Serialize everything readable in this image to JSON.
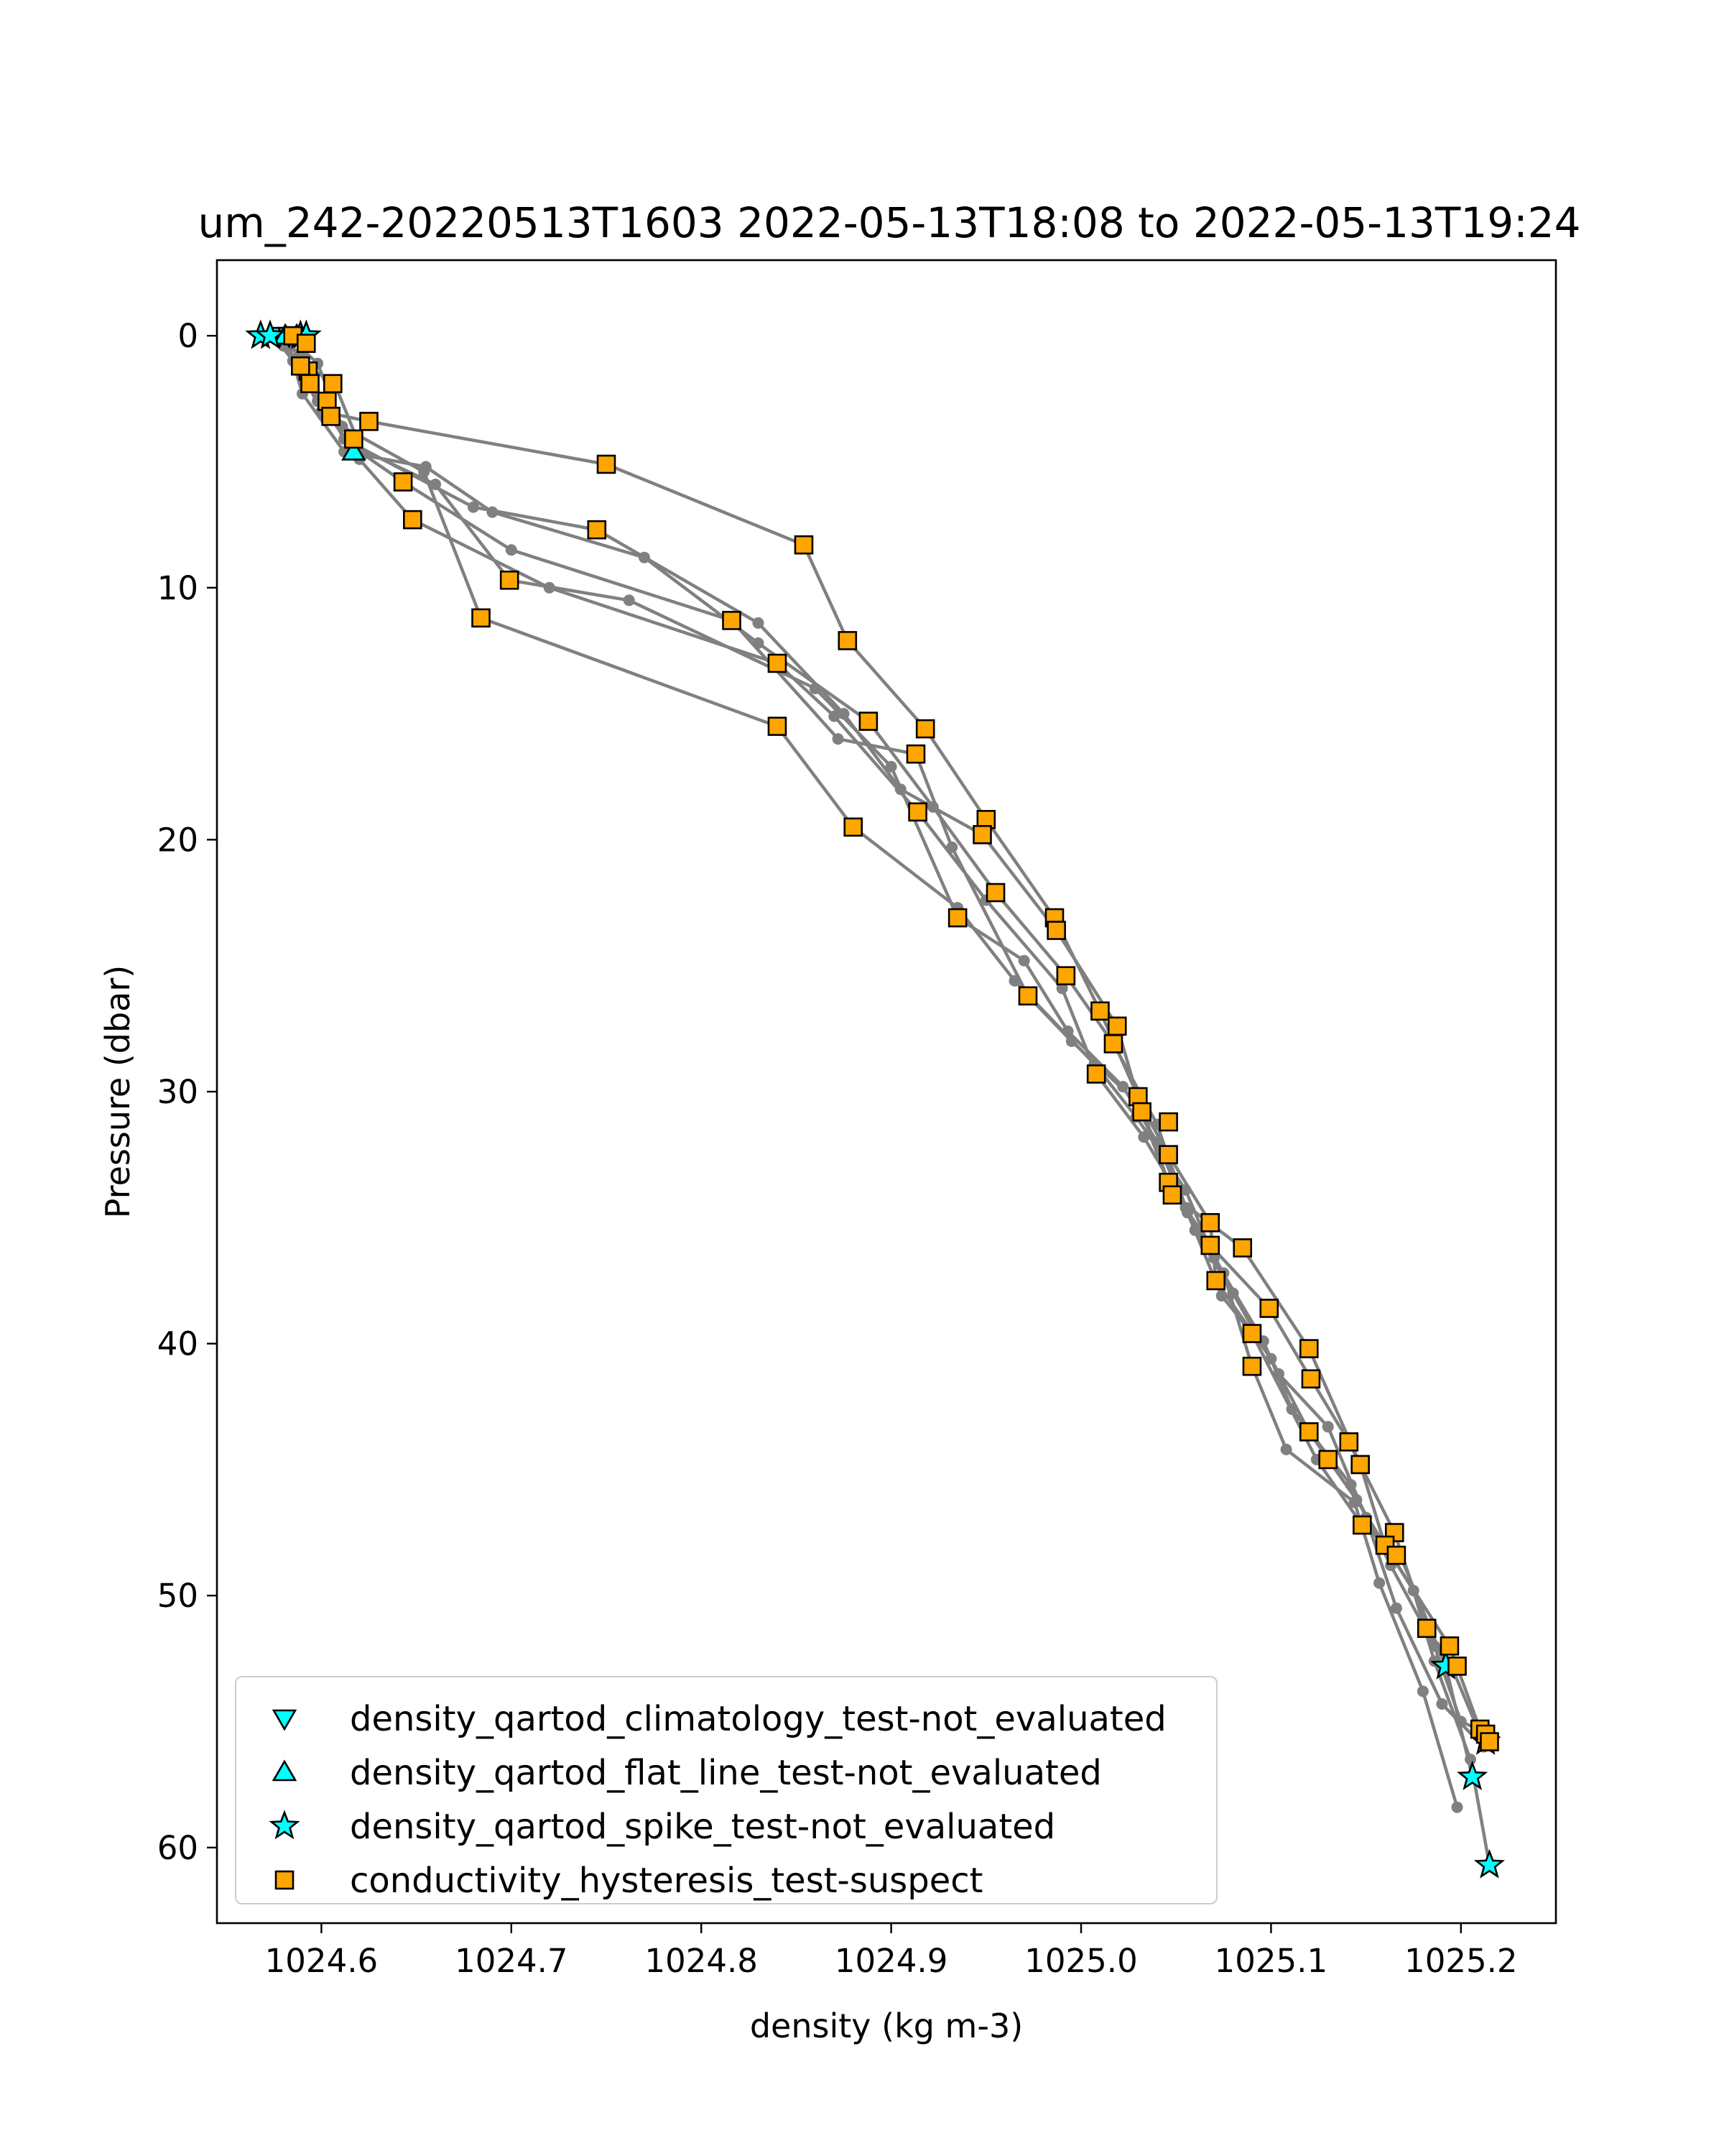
{
  "chart_data": {
    "type": "scatter",
    "title": "um_242-20220513T1603 2022-05-13T18:08 to 2022-05-13T19:24",
    "xlabel": "density (kg m-3)",
    "ylabel": "Pressure (dbar)",
    "xlim": [
      1024.545,
      1025.25
    ],
    "ylim": [
      63,
      -3
    ],
    "y_inverted": true,
    "grid": false,
    "legend_position": "lower-left",
    "x_ticks": [
      {
        "value": 1024.6,
        "label": "1024.6"
      },
      {
        "value": 1024.7,
        "label": "1024.7"
      },
      {
        "value": 1024.8,
        "label": "1024.8"
      },
      {
        "value": 1024.9,
        "label": "1024.9"
      },
      {
        "value": 1025.0,
        "label": "1025.0"
      },
      {
        "value": 1025.1,
        "label": "1025.1"
      },
      {
        "value": 1025.2,
        "label": "1025.2"
      }
    ],
    "y_ticks": [
      {
        "value": 0,
        "label": "0"
      },
      {
        "value": 10,
        "label": "10"
      },
      {
        "value": 20,
        "label": "20"
      },
      {
        "value": 30,
        "label": "30"
      },
      {
        "value": 40,
        "label": "40"
      },
      {
        "value": 50,
        "label": "50"
      },
      {
        "value": 60,
        "label": "60"
      }
    ],
    "profile_line_color": "#808080",
    "profiles": [
      [
        [
          1024.568,
          0.0
        ],
        [
          1024.58,
          0.4
        ],
        [
          1024.592,
          1.8
        ],
        [
          1024.6,
          3.0
        ],
        [
          1024.625,
          3.4
        ],
        [
          1024.75,
          5.1
        ],
        [
          1024.854,
          8.3
        ],
        [
          1024.877,
          12.1
        ],
        [
          1024.918,
          15.6
        ],
        [
          1024.95,
          19.2
        ],
        [
          1024.986,
          23.1
        ],
        [
          1025.01,
          26.8
        ],
        [
          1025.03,
          30.2
        ],
        [
          1025.046,
          33.6
        ],
        [
          1025.068,
          36.1
        ],
        [
          1025.099,
          38.6
        ],
        [
          1025.121,
          41.4
        ],
        [
          1025.141,
          43.9
        ],
        [
          1025.165,
          47.5
        ],
        [
          1025.182,
          51.3
        ],
        [
          1025.195,
          52.8
        ],
        [
          1025.21,
          55.5
        ],
        [
          1025.215,
          55.8
        ]
      ],
      [
        [
          1024.573,
          0.0
        ],
        [
          1024.59,
          0.8
        ],
        [
          1024.6,
          2.5
        ],
        [
          1024.612,
          4.1
        ],
        [
          1024.68,
          6.8
        ],
        [
          1024.745,
          7.7
        ],
        [
          1024.83,
          11.4
        ],
        [
          1024.875,
          15.0
        ],
        [
          1024.905,
          18.0
        ],
        [
          1024.948,
          19.8
        ],
        [
          1024.987,
          23.6
        ],
        [
          1025.019,
          27.4
        ],
        [
          1025.032,
          30.8
        ],
        [
          1025.048,
          34.1
        ],
        [
          1025.085,
          36.2
        ],
        [
          1025.12,
          40.2
        ],
        [
          1025.147,
          44.8
        ],
        [
          1025.16,
          48.0
        ],
        [
          1025.194,
          52.0
        ],
        [
          1025.21,
          55.3
        ]
      ],
      [
        [
          1024.575,
          0.0
        ],
        [
          1024.585,
          1.0
        ],
        [
          1024.59,
          2.3
        ],
        [
          1024.612,
          4.6
        ],
        [
          1024.655,
          5.2
        ],
        [
          1024.69,
          7.0
        ],
        [
          1024.77,
          8.8
        ],
        [
          1024.83,
          12.2
        ],
        [
          1024.888,
          15.3
        ],
        [
          1024.922,
          18.7
        ],
        [
          1024.955,
          22.1
        ],
        [
          1024.992,
          25.4
        ],
        [
          1025.017,
          28.1
        ],
        [
          1025.04,
          31.3
        ],
        [
          1025.056,
          34.8
        ],
        [
          1025.074,
          38.1
        ],
        [
          1025.09,
          39.6
        ],
        [
          1025.124,
          44.6
        ],
        [
          1025.148,
          47.2
        ],
        [
          1025.168,
          48.4
        ],
        [
          1025.192,
          52.8
        ],
        [
          1025.206,
          57.2
        ]
      ],
      [
        [
          1024.578,
          0.0
        ],
        [
          1024.586,
          0.9
        ],
        [
          1024.607,
          1.9
        ],
        [
          1024.622,
          4.7
        ],
        [
          1024.643,
          5.8
        ],
        [
          1024.7,
          8.5
        ],
        [
          1024.816,
          11.3
        ],
        [
          1024.872,
          16.0
        ],
        [
          1024.913,
          16.6
        ],
        [
          1024.932,
          20.3
        ],
        [
          1024.972,
          26.2
        ],
        [
          1024.995,
          28.0
        ],
        [
          1025.032,
          30.6
        ],
        [
          1025.046,
          32.5
        ],
        [
          1025.068,
          35.2
        ],
        [
          1025.071,
          37.5
        ],
        [
          1025.1,
          40.6
        ],
        [
          1025.12,
          43.5
        ],
        [
          1025.145,
          46.2
        ],
        [
          1025.175,
          49.8
        ],
        [
          1025.186,
          52.6
        ],
        [
          1025.205,
          56.5
        ],
        [
          1025.215,
          60.7
        ]
      ],
      [
        [
          1024.58,
          0.0
        ],
        [
          1024.59,
          1.7
        ],
        [
          1024.605,
          3.2
        ],
        [
          1024.62,
          4.9
        ],
        [
          1024.648,
          7.3
        ],
        [
          1024.72,
          10.0
        ],
        [
          1024.84,
          13.0
        ],
        [
          1024.87,
          15.1
        ],
        [
          1024.914,
          18.9
        ],
        [
          1024.95,
          22.4
        ],
        [
          1024.99,
          25.9
        ],
        [
          1025.008,
          29.3
        ],
        [
          1025.033,
          31.8
        ],
        [
          1025.055,
          34.6
        ],
        [
          1025.075,
          37.2
        ],
        [
          1025.09,
          40.9
        ],
        [
          1025.108,
          44.2
        ],
        [
          1025.144,
          46.3
        ],
        [
          1025.157,
          49.5
        ],
        [
          1025.18,
          53.8
        ],
        [
          1025.198,
          58.4
        ]
      ],
      [
        [
          1024.582,
          0.1
        ],
        [
          1024.594,
          1.5
        ],
        [
          1024.598,
          2.6
        ],
        [
          1024.615,
          4.3
        ],
        [
          1024.66,
          5.9
        ],
        [
          1024.699,
          9.7
        ],
        [
          1024.762,
          10.5
        ],
        [
          1024.86,
          14.0
        ],
        [
          1024.9,
          17.1
        ],
        [
          1024.935,
          23.1
        ],
        [
          1024.97,
          24.8
        ],
        [
          1024.993,
          27.6
        ],
        [
          1025.022,
          29.8
        ],
        [
          1025.04,
          32.0
        ],
        [
          1025.06,
          35.5
        ],
        [
          1025.08,
          38.0
        ],
        [
          1025.104,
          41.2
        ],
        [
          1025.13,
          43.3
        ],
        [
          1025.15,
          46.9
        ],
        [
          1025.166,
          50.5
        ],
        [
          1025.19,
          54.3
        ],
        [
          1025.212,
          56.0
        ]
      ],
      [
        [
          1024.585,
          0.2
        ],
        [
          1024.598,
          1.1
        ],
        [
          1024.611,
          3.6
        ],
        [
          1024.654,
          5.4
        ],
        [
          1024.684,
          11.2
        ],
        [
          1024.84,
          15.5
        ],
        [
          1024.88,
          19.5
        ],
        [
          1024.935,
          22.7
        ],
        [
          1024.965,
          25.6
        ],
        [
          1025.007,
          28.9
        ],
        [
          1025.029,
          31.0
        ],
        [
          1025.055,
          33.9
        ],
        [
          1025.07,
          36.6
        ],
        [
          1025.096,
          39.9
        ],
        [
          1025.111,
          42.6
        ],
        [
          1025.142,
          45.6
        ],
        [
          1025.163,
          48.8
        ],
        [
          1025.186,
          52.0
        ],
        [
          1025.2,
          55.0
        ],
        [
          1025.215,
          55.5
        ]
      ]
    ],
    "series": [
      {
        "name": "density_qartod_climatology_test-not_evaluated",
        "marker": "triangle-down",
        "color": "#00ffff",
        "points": [
          [
            1024.578,
            0.0
          ],
          [
            1024.583,
            0.0
          ],
          [
            1024.586,
            0.0
          ]
        ]
      },
      {
        "name": "density_qartod_flat_line_test-not_evaluated",
        "marker": "triangle-up",
        "color": "#00ffff",
        "points": [
          [
            1024.581,
            0.0
          ],
          [
            1024.587,
            0.0
          ],
          [
            1024.617,
            4.6
          ]
        ]
      },
      {
        "name": "density_qartod_spike_test-not_evaluated",
        "marker": "star",
        "color": "#00ffff",
        "points": [
          [
            1024.568,
            0.0
          ],
          [
            1024.573,
            0.0
          ],
          [
            1024.589,
            0.0
          ],
          [
            1024.592,
            0.0
          ],
          [
            1025.192,
            52.8
          ],
          [
            1025.206,
            57.2
          ],
          [
            1025.215,
            60.7
          ],
          [
            1025.213,
            55.8
          ]
        ]
      },
      {
        "name": "conductivity_hysteresis_test-suspect",
        "marker": "square",
        "color": "#ffa500",
        "points": [
          [
            1024.585,
            0.0
          ],
          [
            1024.592,
            0.3
          ],
          [
            1024.593,
            1.4
          ],
          [
            1024.589,
            1.2
          ],
          [
            1024.594,
            1.9
          ],
          [
            1024.606,
            1.9
          ],
          [
            1024.603,
            2.6
          ],
          [
            1024.605,
            3.2
          ],
          [
            1024.625,
            3.4
          ],
          [
            1024.617,
            4.1
          ],
          [
            1024.75,
            5.1
          ],
          [
            1024.643,
            5.8
          ],
          [
            1024.648,
            7.3
          ],
          [
            1024.745,
            7.7
          ],
          [
            1024.854,
            8.3
          ],
          [
            1024.699,
            9.7
          ],
          [
            1024.684,
            11.2
          ],
          [
            1024.816,
            11.3
          ],
          [
            1024.877,
            12.1
          ],
          [
            1024.84,
            13.0
          ],
          [
            1024.888,
            15.3
          ],
          [
            1024.84,
            15.5
          ],
          [
            1024.918,
            15.6
          ],
          [
            1024.913,
            16.6
          ],
          [
            1024.914,
            18.9
          ],
          [
            1024.95,
            19.2
          ],
          [
            1024.88,
            19.5
          ],
          [
            1024.948,
            19.8
          ],
          [
            1024.955,
            22.1
          ],
          [
            1024.986,
            23.1
          ],
          [
            1024.935,
            23.1
          ],
          [
            1024.987,
            23.6
          ],
          [
            1024.992,
            25.4
          ],
          [
            1024.972,
            26.2
          ],
          [
            1025.01,
            26.8
          ],
          [
            1025.019,
            27.4
          ],
          [
            1025.017,
            28.1
          ],
          [
            1025.008,
            29.3
          ],
          [
            1025.03,
            30.2
          ],
          [
            1025.032,
            30.8
          ],
          [
            1025.046,
            31.2
          ],
          [
            1025.046,
            32.5
          ],
          [
            1025.046,
            33.6
          ],
          [
            1025.048,
            34.1
          ],
          [
            1025.068,
            35.2
          ],
          [
            1025.068,
            36.1
          ],
          [
            1025.085,
            36.2
          ],
          [
            1025.071,
            37.5
          ],
          [
            1025.099,
            38.6
          ],
          [
            1025.09,
            39.6
          ],
          [
            1025.12,
            40.2
          ],
          [
            1025.09,
            40.9
          ],
          [
            1025.121,
            41.4
          ],
          [
            1025.12,
            43.5
          ],
          [
            1025.141,
            43.9
          ],
          [
            1025.13,
            44.6
          ],
          [
            1025.147,
            44.8
          ],
          [
            1025.148,
            47.2
          ],
          [
            1025.165,
            47.5
          ],
          [
            1025.16,
            48.0
          ],
          [
            1025.166,
            48.4
          ],
          [
            1025.182,
            51.3
          ],
          [
            1025.194,
            52.0
          ],
          [
            1025.198,
            52.8
          ],
          [
            1025.21,
            55.3
          ],
          [
            1025.213,
            55.5
          ],
          [
            1025.215,
            55.8
          ]
        ]
      }
    ]
  }
}
